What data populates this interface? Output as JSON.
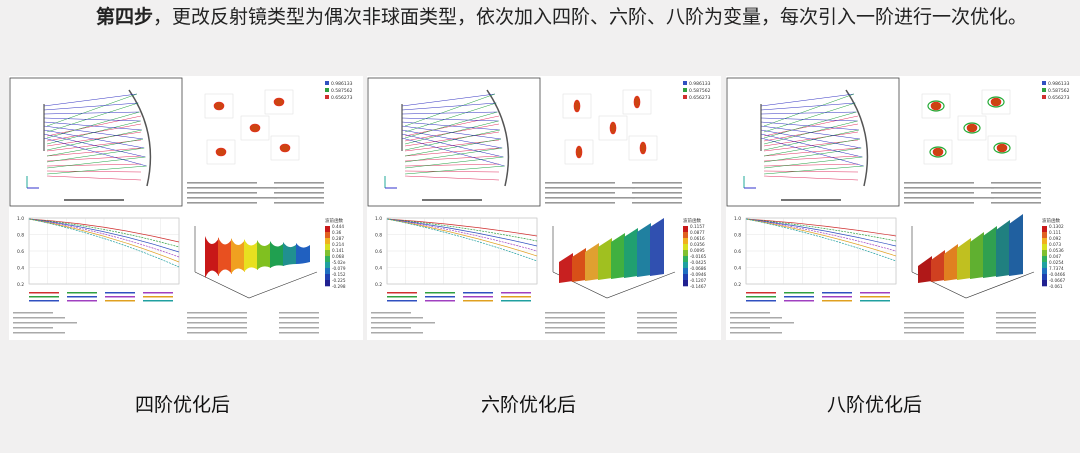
{
  "heading": {
    "bold": "第四步",
    "text": "，更改反射镜类型为偶次非球面类型，依次加入四阶、六阶、八阶为变量，每次引入一阶进行一次优化。"
  },
  "panels": [
    {
      "caption": "四阶优化后",
      "legend": [
        "0.986133",
        "0.587562",
        "0.656273"
      ],
      "colorbar": [
        "0.444",
        "0.36",
        "0.287",
        "0.214",
        "0.141",
        "0.068",
        "-5.02e",
        "-0.079",
        "-0.152",
        "-0.225",
        "-0.298"
      ],
      "colorbar_title": "波前函数",
      "mtf_yticks": [
        "1.0",
        "0.8",
        "0.6",
        "0.4",
        "0.2"
      ]
    },
    {
      "caption": "六阶优化后",
      "legend": [
        "0.986133",
        "0.587562",
        "0.656273"
      ],
      "colorbar": [
        "0.1157",
        "0.0877",
        "0.0616",
        "0.0356",
        "0.0095",
        "-0.0165",
        "-0.0425",
        "-0.0686",
        "-0.0946",
        "-0.1207",
        "-0.1467"
      ],
      "colorbar_title": "波前函数",
      "mtf_yticks": [
        "1.0",
        "0.8",
        "0.6",
        "0.4",
        "0.2"
      ]
    },
    {
      "caption": "八阶优化后",
      "legend": [
        "0.986133",
        "0.587562",
        "0.656273"
      ],
      "colorbar": [
        "0.1302",
        "0.111",
        "0.092",
        "0.073",
        "0.0536",
        "0.047",
        "0.0254",
        "7.7374",
        "-0.0466",
        "-0.0667",
        "-0.061"
      ],
      "colorbar_title": "波前函数",
      "mtf_yticks": [
        "1.0",
        "0.8",
        "0.6",
        "0.4",
        "0.2"
      ]
    }
  ],
  "colors": {
    "background": "#f1f0f0",
    "panel": "#ffffff",
    "rays_blue": "#3030c0",
    "rays_green": "#20a040",
    "rays_red": "#e03060",
    "mirror": "#555555"
  }
}
